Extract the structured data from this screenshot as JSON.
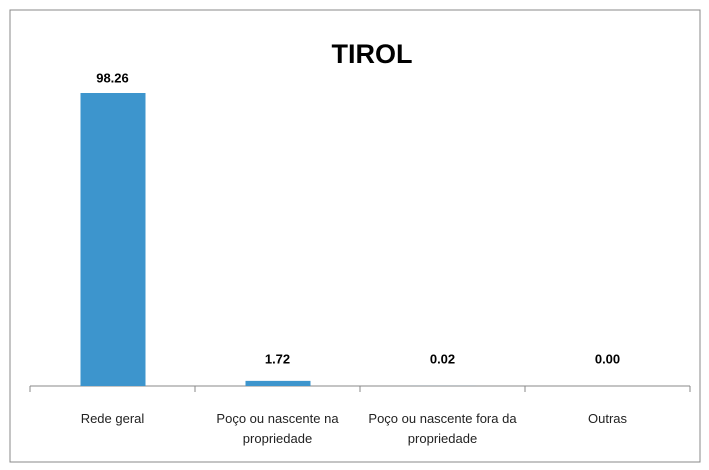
{
  "chart_data": {
    "type": "bar",
    "title": "TIROL",
    "categories": [
      "Rede geral",
      "Poço ou nascente na propriedade",
      "Poço ou nascente fora da propriedade",
      "Outras"
    ],
    "values": [
      98.26,
      1.72,
      0.02,
      0.0
    ],
    "value_labels": [
      "98.26",
      "1.72",
      "0.02",
      "0.00"
    ],
    "color": "#3d95cd"
  }
}
